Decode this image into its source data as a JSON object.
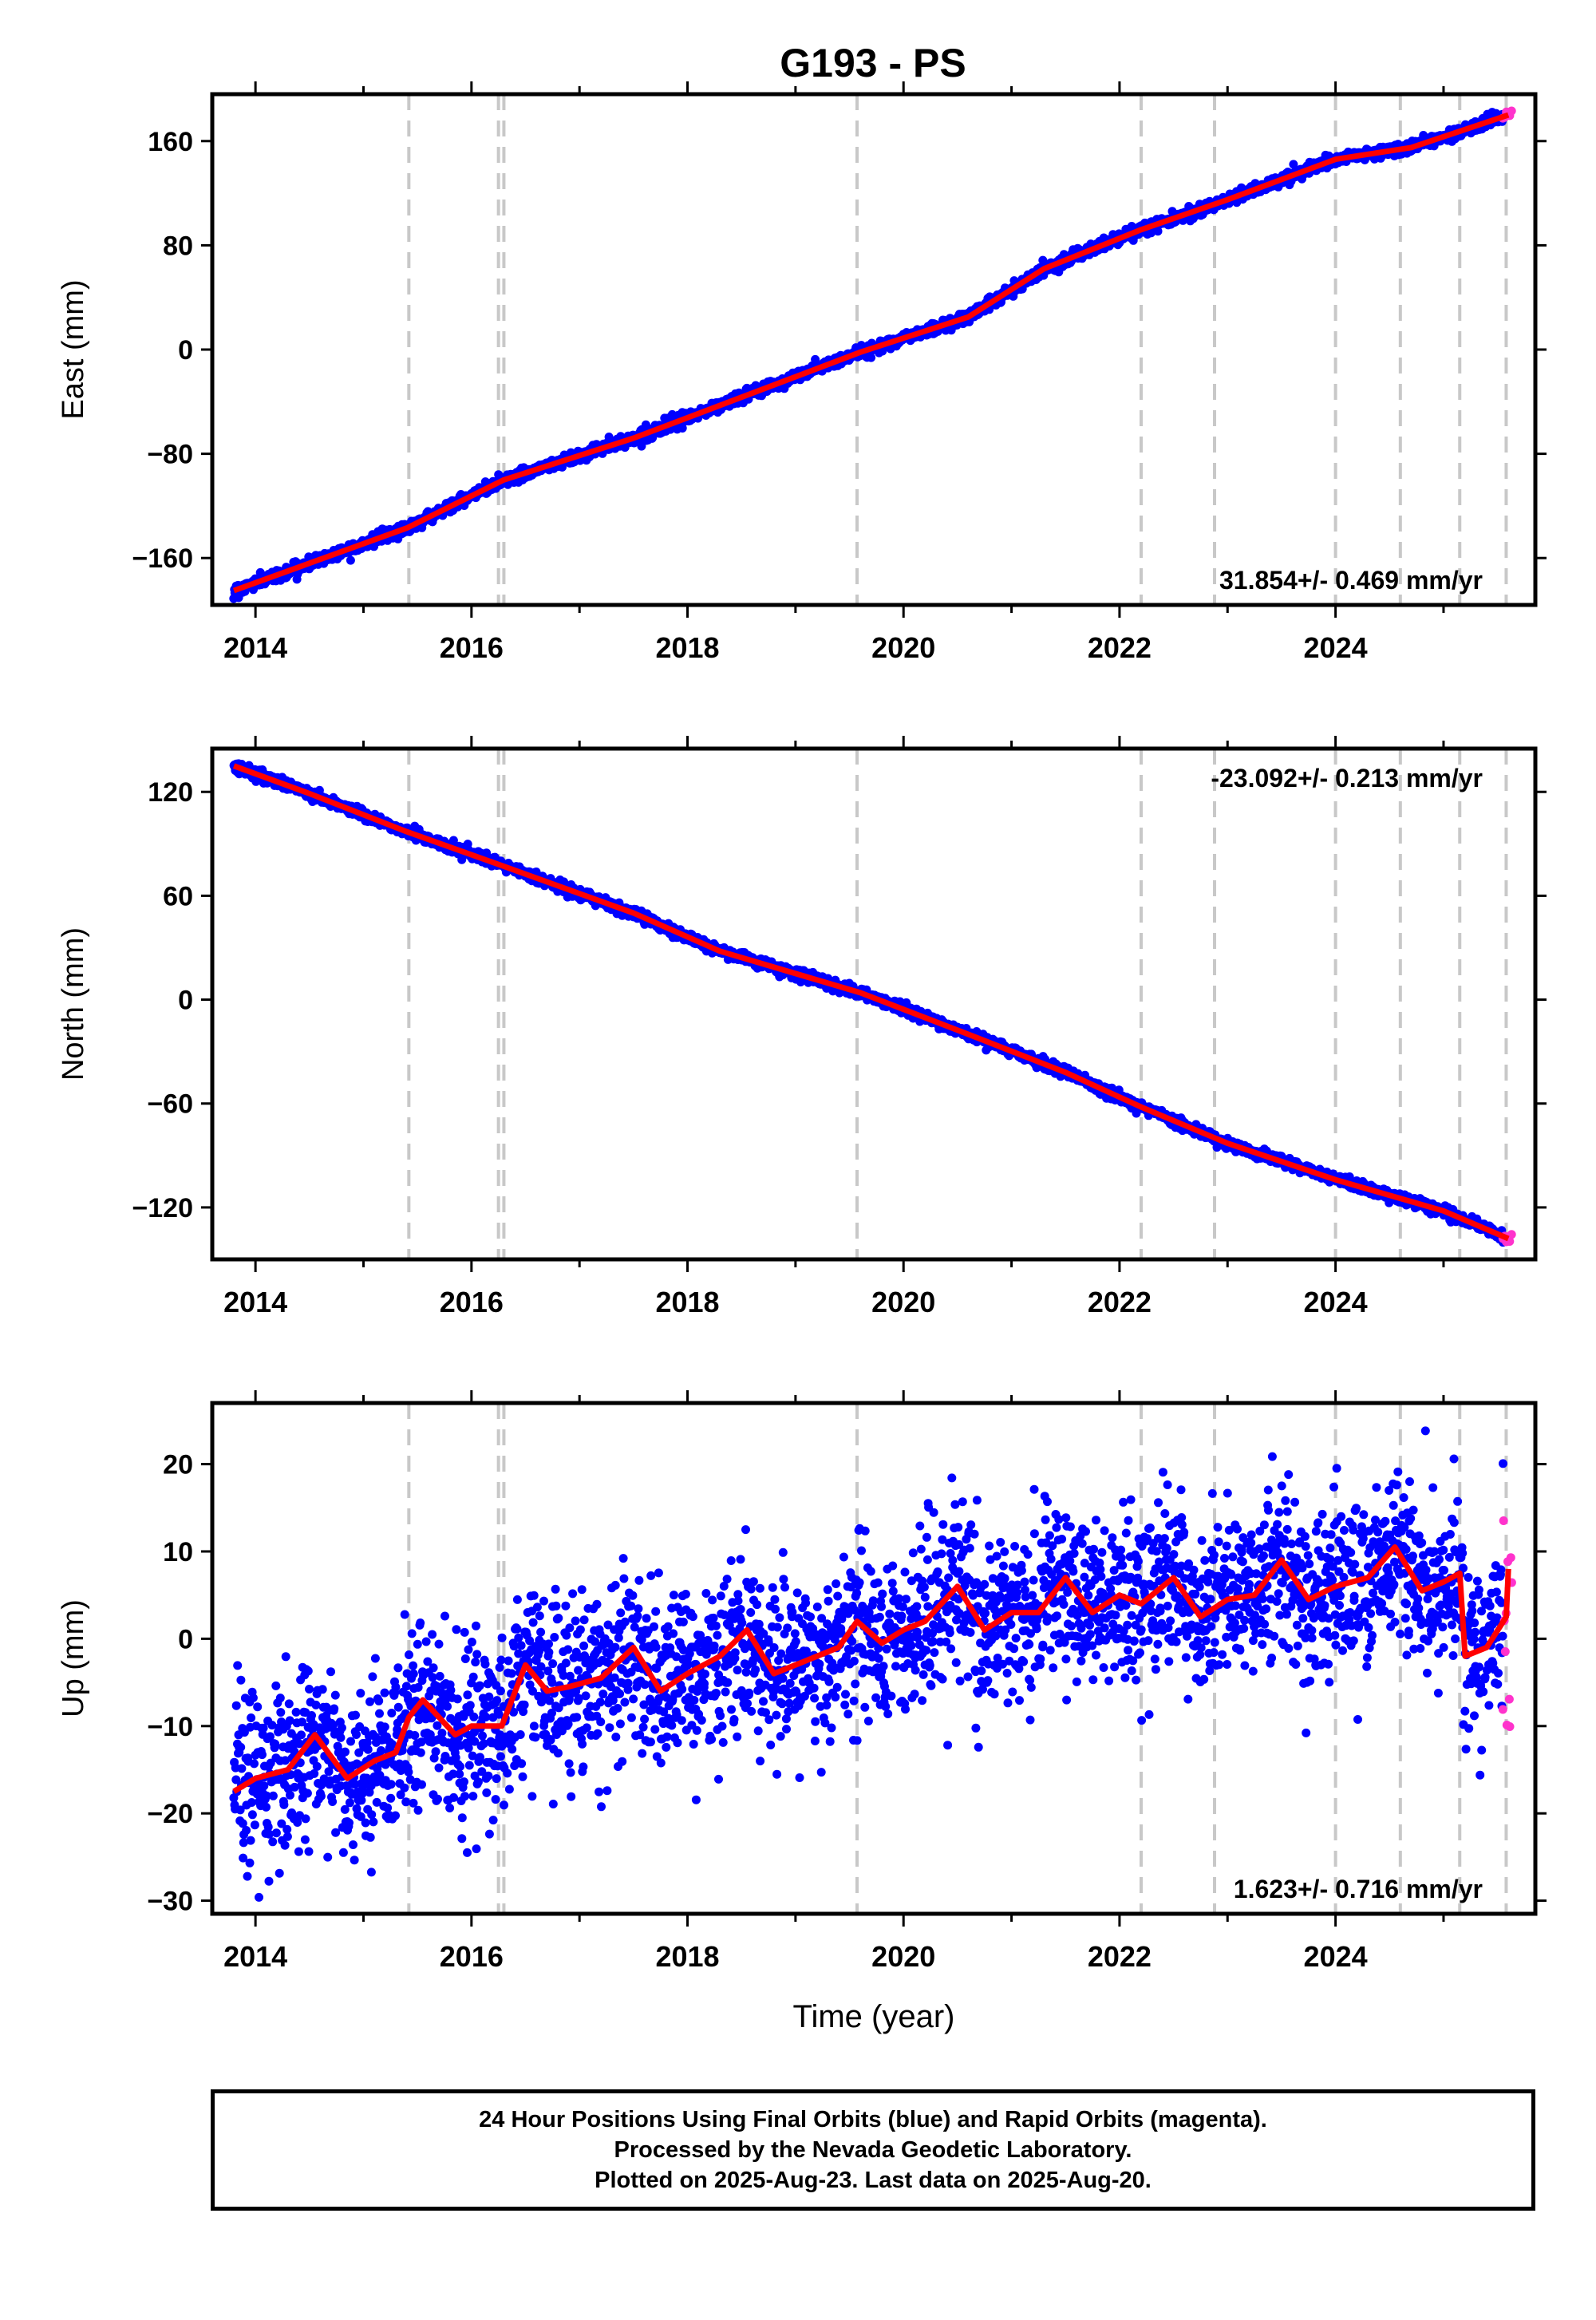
{
  "title": "G193 - PS",
  "footer": {
    "lines": [
      "24 Hour Positions Using Final Orbits (blue) and Rapid Orbits (magenta).",
      "Processed by the Nevada Geodetic Laboratory.",
      "Plotted on 2025-Aug-23. Last data on 2025-Aug-20."
    ]
  },
  "colors": {
    "final_orbits": "#0000ff",
    "rapid_orbits": "#ff33cc",
    "model_fit": "#ff0000",
    "event_lines": "#c8c8c8"
  },
  "chart_data": [
    {
      "type": "scatter",
      "component": "east",
      "ylabel": "East (mm)",
      "xlabel": "",
      "xlim": [
        2013.6,
        2025.85
      ],
      "ylim": [
        -196,
        196
      ],
      "yticks": [
        -160,
        -80,
        0,
        80,
        160
      ],
      "xticks": [
        2014,
        2016,
        2018,
        2020,
        2022,
        2024
      ],
      "xtick_labels": [
        "2014",
        "2016",
        "2018",
        "2020",
        "2022",
        "2024"
      ],
      "rate_label": "31.854+/- 0.469 mm/yr",
      "rate_position": "bottom-right",
      "event_lines": [
        2015.42,
        2016.25,
        2016.3,
        2019.57,
        2022.2,
        2022.88,
        2024.0,
        2024.6,
        2025.15,
        2025.58
      ],
      "trend": {
        "x": [
          2013.8,
          2015.4,
          2016.3,
          2017.5,
          2019.6,
          2020.6,
          2021.3,
          2022.2,
          2023.0,
          2024.0,
          2024.7,
          2025.6
        ],
        "y": [
          -185,
          -137,
          -100,
          -68,
          -2,
          25,
          62,
          92,
          115,
          146,
          155,
          180
        ]
      },
      "series": [
        {
          "name": "Final Orbits",
          "color": "#0000ff",
          "x_start": 2013.8,
          "x_end": 2025.55,
          "count": 2600,
          "noise_mm": 2.2
        },
        {
          "name": "Rapid Orbits",
          "color": "#ff33cc",
          "x_start": 2025.55,
          "x_end": 2025.63,
          "count": 6,
          "noise_mm": 2.2
        }
      ]
    },
    {
      "type": "scatter",
      "component": "north",
      "ylabel": "North (mm)",
      "xlabel": "",
      "xlim": [
        2013.6,
        2025.85
      ],
      "ylim": [
        -150,
        145
      ],
      "yticks": [
        -120,
        -60,
        0,
        60,
        120
      ],
      "xticks": [
        2014,
        2016,
        2018,
        2020,
        2022,
        2024
      ],
      "xtick_labels": [
        "2014",
        "2016",
        "2018",
        "2020",
        "2022",
        "2024"
      ],
      "rate_label": "-23.092+/- 0.213 mm/yr",
      "rate_position": "top-right",
      "event_lines": [
        2015.42,
        2016.25,
        2016.3,
        2019.57,
        2022.2,
        2022.88,
        2024.0,
        2024.6,
        2025.15,
        2025.58
      ],
      "trend": {
        "x": [
          2013.8,
          2014.5,
          2015.4,
          2016.3,
          2017.5,
          2018.3,
          2019.6,
          2020.6,
          2021.5,
          2022.2,
          2023.0,
          2024.0,
          2025.0,
          2025.6
        ],
        "y": [
          135,
          119,
          97,
          77,
          50,
          28,
          4,
          -20,
          -42,
          -62,
          -83,
          -104,
          -122,
          -138
        ]
      },
      "series": [
        {
          "name": "Final Orbits",
          "color": "#0000ff",
          "x_start": 2013.8,
          "x_end": 2025.55,
          "count": 2600,
          "noise_mm": 1.5
        },
        {
          "name": "Rapid Orbits",
          "color": "#ff33cc",
          "x_start": 2025.55,
          "x_end": 2025.63,
          "count": 6,
          "noise_mm": 1.5
        }
      ]
    },
    {
      "type": "scatter",
      "component": "up",
      "ylabel": "Up (mm)",
      "xlabel": "Time (year)",
      "xlim": [
        2013.6,
        2025.85
      ],
      "ylim": [
        -31.5,
        27
      ],
      "yticks": [
        -30,
        -20,
        -10,
        0,
        10,
        20
      ],
      "xticks": [
        2014,
        2016,
        2018,
        2020,
        2022,
        2024
      ],
      "xtick_labels": [
        "2014",
        "2016",
        "2018",
        "2020",
        "2022",
        "2024"
      ],
      "rate_label": "1.623+/- 0.716 mm/yr",
      "rate_position": "bottom-right",
      "event_lines": [
        2015.42,
        2016.25,
        2016.3,
        2019.57,
        2022.2,
        2022.88,
        2024.0,
        2024.6,
        2025.15,
        2025.58
      ],
      "trend": {
        "x": [
          2013.8,
          2014.0,
          2014.3,
          2014.55,
          2014.85,
          2015.1,
          2015.3,
          2015.42,
          2015.55,
          2015.85,
          2016.0,
          2016.28,
          2016.5,
          2016.7,
          2016.9,
          2017.2,
          2017.5,
          2017.75,
          2018.0,
          2018.3,
          2018.55,
          2018.8,
          2019.1,
          2019.4,
          2019.57,
          2019.8,
          2020.0,
          2020.2,
          2020.5,
          2020.75,
          2021.0,
          2021.25,
          2021.5,
          2021.75,
          2022.0,
          2022.2,
          2022.5,
          2022.75,
          2023.0,
          2023.25,
          2023.5,
          2023.75,
          2024.0,
          2024.3,
          2024.55,
          2024.8,
          2025.0,
          2025.15,
          2025.2,
          2025.4,
          2025.58,
          2025.6
        ],
        "y": [
          -17.5,
          -16,
          -15,
          -11,
          -16,
          -14,
          -13,
          -9,
          -7,
          -11,
          -10,
          -10,
          -3,
          -6,
          -5.5,
          -4.5,
          -1,
          -6,
          -4,
          -2,
          1,
          -4,
          -2.5,
          -1,
          2,
          -0.5,
          1,
          2,
          6,
          1,
          3,
          3,
          7,
          3,
          5,
          4,
          7,
          2.5,
          4.5,
          5,
          9,
          4.5,
          6,
          7,
          10.5,
          5.5,
          6.5,
          7.5,
          -2,
          -1,
          2.5,
          8
        ]
      },
      "series": [
        {
          "name": "Final Orbits",
          "color": "#0000ff",
          "x_start": 2013.8,
          "x_end": 2025.55,
          "count": 3000,
          "noise_mm": 4.8
        },
        {
          "name": "Rapid Orbits",
          "color": "#ff33cc",
          "x_start": 2025.55,
          "x_end": 2025.63,
          "count": 12,
          "noise_mm": 9
        }
      ]
    }
  ]
}
